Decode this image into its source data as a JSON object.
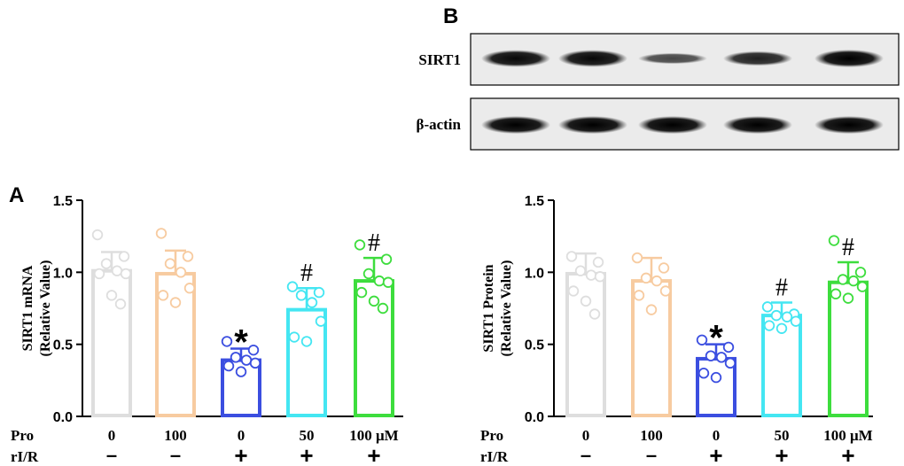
{
  "panel_labels": {
    "A": "A",
    "B": "B"
  },
  "blot": {
    "rows": [
      {
        "label": "SIRT1",
        "intensities": [
          0.95,
          0.95,
          0.45,
          0.75,
          1.0
        ]
      },
      {
        "label": "β-actin",
        "intensities": [
          1.0,
          1.0,
          1.0,
          1.0,
          1.0
        ]
      }
    ]
  },
  "row_labels": {
    "pro": "Pro",
    "ri": "rI/R"
  },
  "colors": [
    "#dedede",
    "#f7cba0",
    "#3b4ee0",
    "#44e6f2",
    "#3ddd3d"
  ],
  "chart_data": [
    {
      "type": "bar",
      "ylabel_line1": "SIRT1 mRNA",
      "ylabel_line2": "(Relative Value)",
      "ylim": [
        0,
        1.5
      ],
      "yticks": [
        "0.0",
        "0.5",
        "1.0",
        "1.5"
      ],
      "pro_labels": [
        "0",
        "100",
        "0",
        "50",
        "100 μM"
      ],
      "ri_labels": [
        "–",
        "–",
        "+",
        "+",
        "+"
      ],
      "values": [
        1.01,
        0.99,
        0.39,
        0.74,
        0.94
      ],
      "errors": [
        0.13,
        0.16,
        0.08,
        0.15,
        0.16
      ],
      "annotations": [
        "",
        "",
        "*",
        "#",
        "#"
      ],
      "points": [
        [
          1.26,
          1.11,
          1.06,
          1.01,
          0.99,
          0.99,
          0.84,
          0.78
        ],
        [
          1.27,
          1.11,
          1.06,
          1.0,
          0.89,
          0.84,
          0.79
        ],
        [
          0.52,
          0.46,
          0.41,
          0.39,
          0.37,
          0.35,
          0.31
        ],
        [
          0.9,
          0.86,
          0.84,
          0.79,
          0.66,
          0.55,
          0.52
        ],
        [
          1.19,
          1.09,
          0.99,
          0.94,
          0.93,
          0.86,
          0.8,
          0.75
        ]
      ]
    },
    {
      "type": "bar",
      "ylabel_line1": "SIRT1 Protein",
      "ylabel_line2": "(Relative Value)",
      "ylim": [
        0,
        1.5
      ],
      "yticks": [
        "0.0",
        "0.5",
        "1.0",
        "1.5"
      ],
      "pro_labels": [
        "0",
        "100",
        "0",
        "50",
        "100 μM"
      ],
      "ri_labels": [
        "–",
        "–",
        "+",
        "+",
        "+"
      ],
      "values": [
        0.99,
        0.94,
        0.4,
        0.7,
        0.93
      ],
      "errors": [
        0.14,
        0.16,
        0.1,
        0.09,
        0.14
      ],
      "annotations": [
        "",
        "",
        "*",
        "#",
        "#"
      ],
      "points": [
        [
          1.11,
          1.07,
          1.01,
          0.98,
          0.97,
          0.87,
          0.8,
          0.71
        ],
        [
          1.1,
          1.03,
          0.96,
          0.94,
          0.87,
          0.84,
          0.74
        ],
        [
          0.53,
          0.48,
          0.42,
          0.41,
          0.37,
          0.3,
          0.27
        ],
        [
          0.76,
          0.71,
          0.7,
          0.69,
          0.66,
          0.63,
          0.61
        ],
        [
          1.22,
          1.0,
          0.95,
          0.94,
          0.9,
          0.85,
          0.82
        ]
      ]
    }
  ]
}
